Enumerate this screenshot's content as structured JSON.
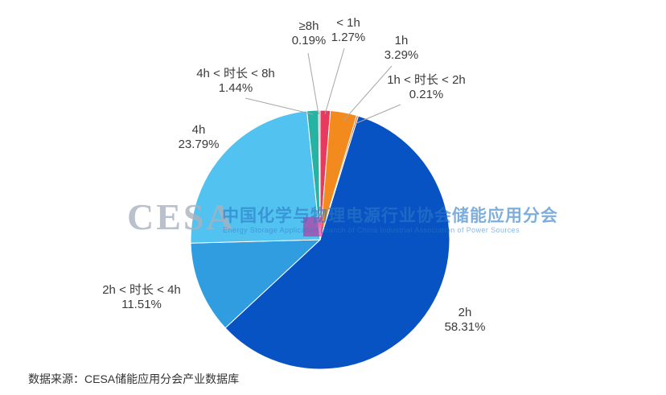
{
  "chart_data": {
    "type": "pie",
    "title": "",
    "unit": "%",
    "start_angle_deg": 0,
    "direction": "clockwise",
    "legend_position": "none",
    "slices": [
      {
        "label": "< 1h",
        "value": 1.27,
        "pct_text": "1.27%",
        "color": "#e73a5e"
      },
      {
        "label": "1h",
        "value": 3.29,
        "pct_text": "3.29%",
        "color": "#f28a1d"
      },
      {
        "label": "1h < 时长 < 2h",
        "value": 0.21,
        "pct_text": "0.21%",
        "color": "#c55a11"
      },
      {
        "label": "2h",
        "value": 58.31,
        "pct_text": "58.31%",
        "color": "#0853c4"
      },
      {
        "label": "2h < 时长 < 4h",
        "value": 11.51,
        "pct_text": "11.51%",
        "color": "#2f9de0"
      },
      {
        "label": "4h",
        "value": 23.79,
        "pct_text": "23.79%",
        "color": "#52c2f0"
      },
      {
        "label": "4h < 时长 < 8h",
        "value": 1.44,
        "pct_text": "1.44%",
        "color": "#27b3a4"
      },
      {
        "label": "≥8h",
        "value": 0.19,
        "pct_text": "0.19%",
        "color": "#9aa0a6"
      }
    ]
  },
  "watermark": {
    "acronym": "CESA",
    "title_cn": "中国化学与物理电源行业协会储能应用分会",
    "subtitle_en": "Energy Storage Application Branch of China Industrial Association of Power Sources"
  },
  "source_note": "数据来源：CESA储能应用分会产业数据库",
  "colors": {
    "background": "#ffffff",
    "leader_line": "#a6a6a6",
    "label_text": "#3b3b3b",
    "watermark_blue": "#2a7ac6",
    "watermark_gray": "#a8b2c0",
    "watermark_pink": "#e5007d"
  }
}
